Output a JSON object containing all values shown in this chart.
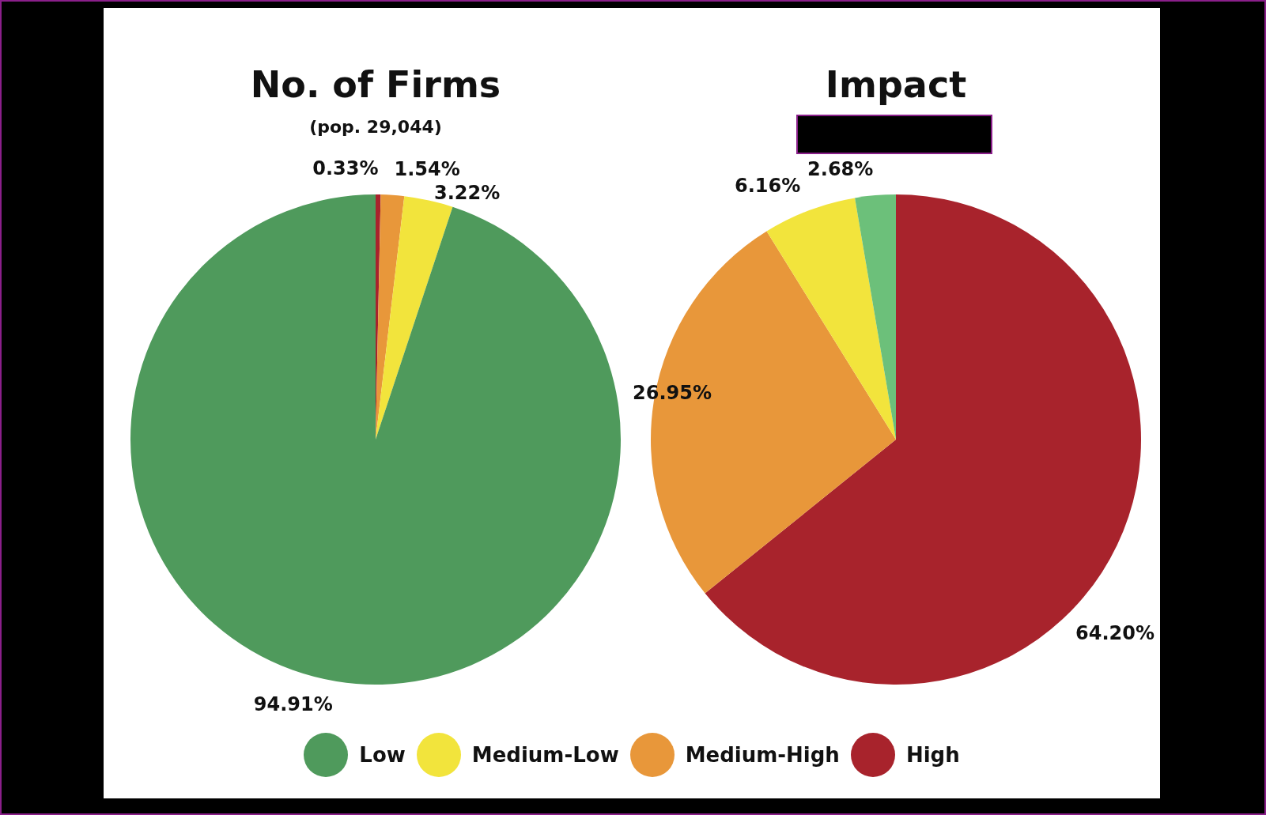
{
  "chart_data": {
    "type": "pie",
    "categories": [
      "High",
      "Medium-High",
      "Medium-Low",
      "Low"
    ],
    "legend": "bottom",
    "annotations": [
      "(pop. 29,044)"
    ],
    "series": [
      {
        "name": "No. of Firms",
        "values": [
          0.33,
          1.54,
          3.22,
          94.91
        ],
        "colors": [
          "#a8232c",
          "#e8973a",
          "#f2e43c",
          "#4f9a5c"
        ],
        "value_labels": [
          "0.33%",
          "1.54%",
          "3.22%",
          "94.91%"
        ]
      },
      {
        "name": "Impact",
        "values": [
          64.2,
          26.95,
          6.16,
          2.68
        ],
        "colors": [
          "#a8232c",
          "#e8973a",
          "#f2e43c",
          "#6cc07a"
        ],
        "value_labels": [
          "64.20%",
          "26.95%",
          "6.16%",
          "2.68%"
        ]
      }
    ]
  }
}
